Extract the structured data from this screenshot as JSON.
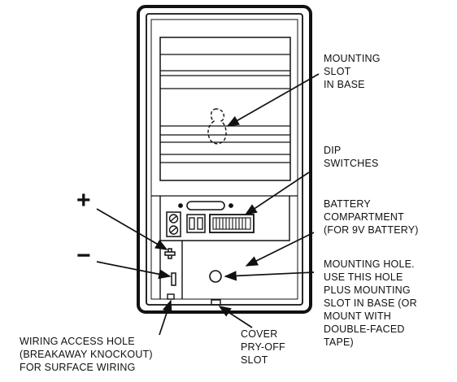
{
  "labels": {
    "mounting_slot": [
      "MOUNTING",
      "SLOT",
      "IN BASE"
    ],
    "dip_switches": [
      "DIP",
      "SWITCHES"
    ],
    "battery_compartment": [
      "BATTERY",
      "COMPARTMENT",
      "(FOR 9V BATTERY)"
    ],
    "mounting_hole": [
      "MOUNTING HOLE.",
      "USE THIS HOLE",
      "PLUS MOUNTING",
      "SLOT IN BASE (OR",
      "MOUNT WITH",
      "DOUBLE-FACED",
      "TAPE)"
    ],
    "cover_pry_off_slot": [
      "COVER",
      "PRY-OFF",
      "SLOT"
    ],
    "wiring_access_hole": [
      "WIRING ACCESS HOLE",
      "(BREAKAWAY KNOCKOUT)",
      "FOR SURFACE WIRING"
    ],
    "plus_sign": "+",
    "minus_sign": "−"
  },
  "colors": {
    "ink": "#111111",
    "paper": "#ffffff"
  }
}
